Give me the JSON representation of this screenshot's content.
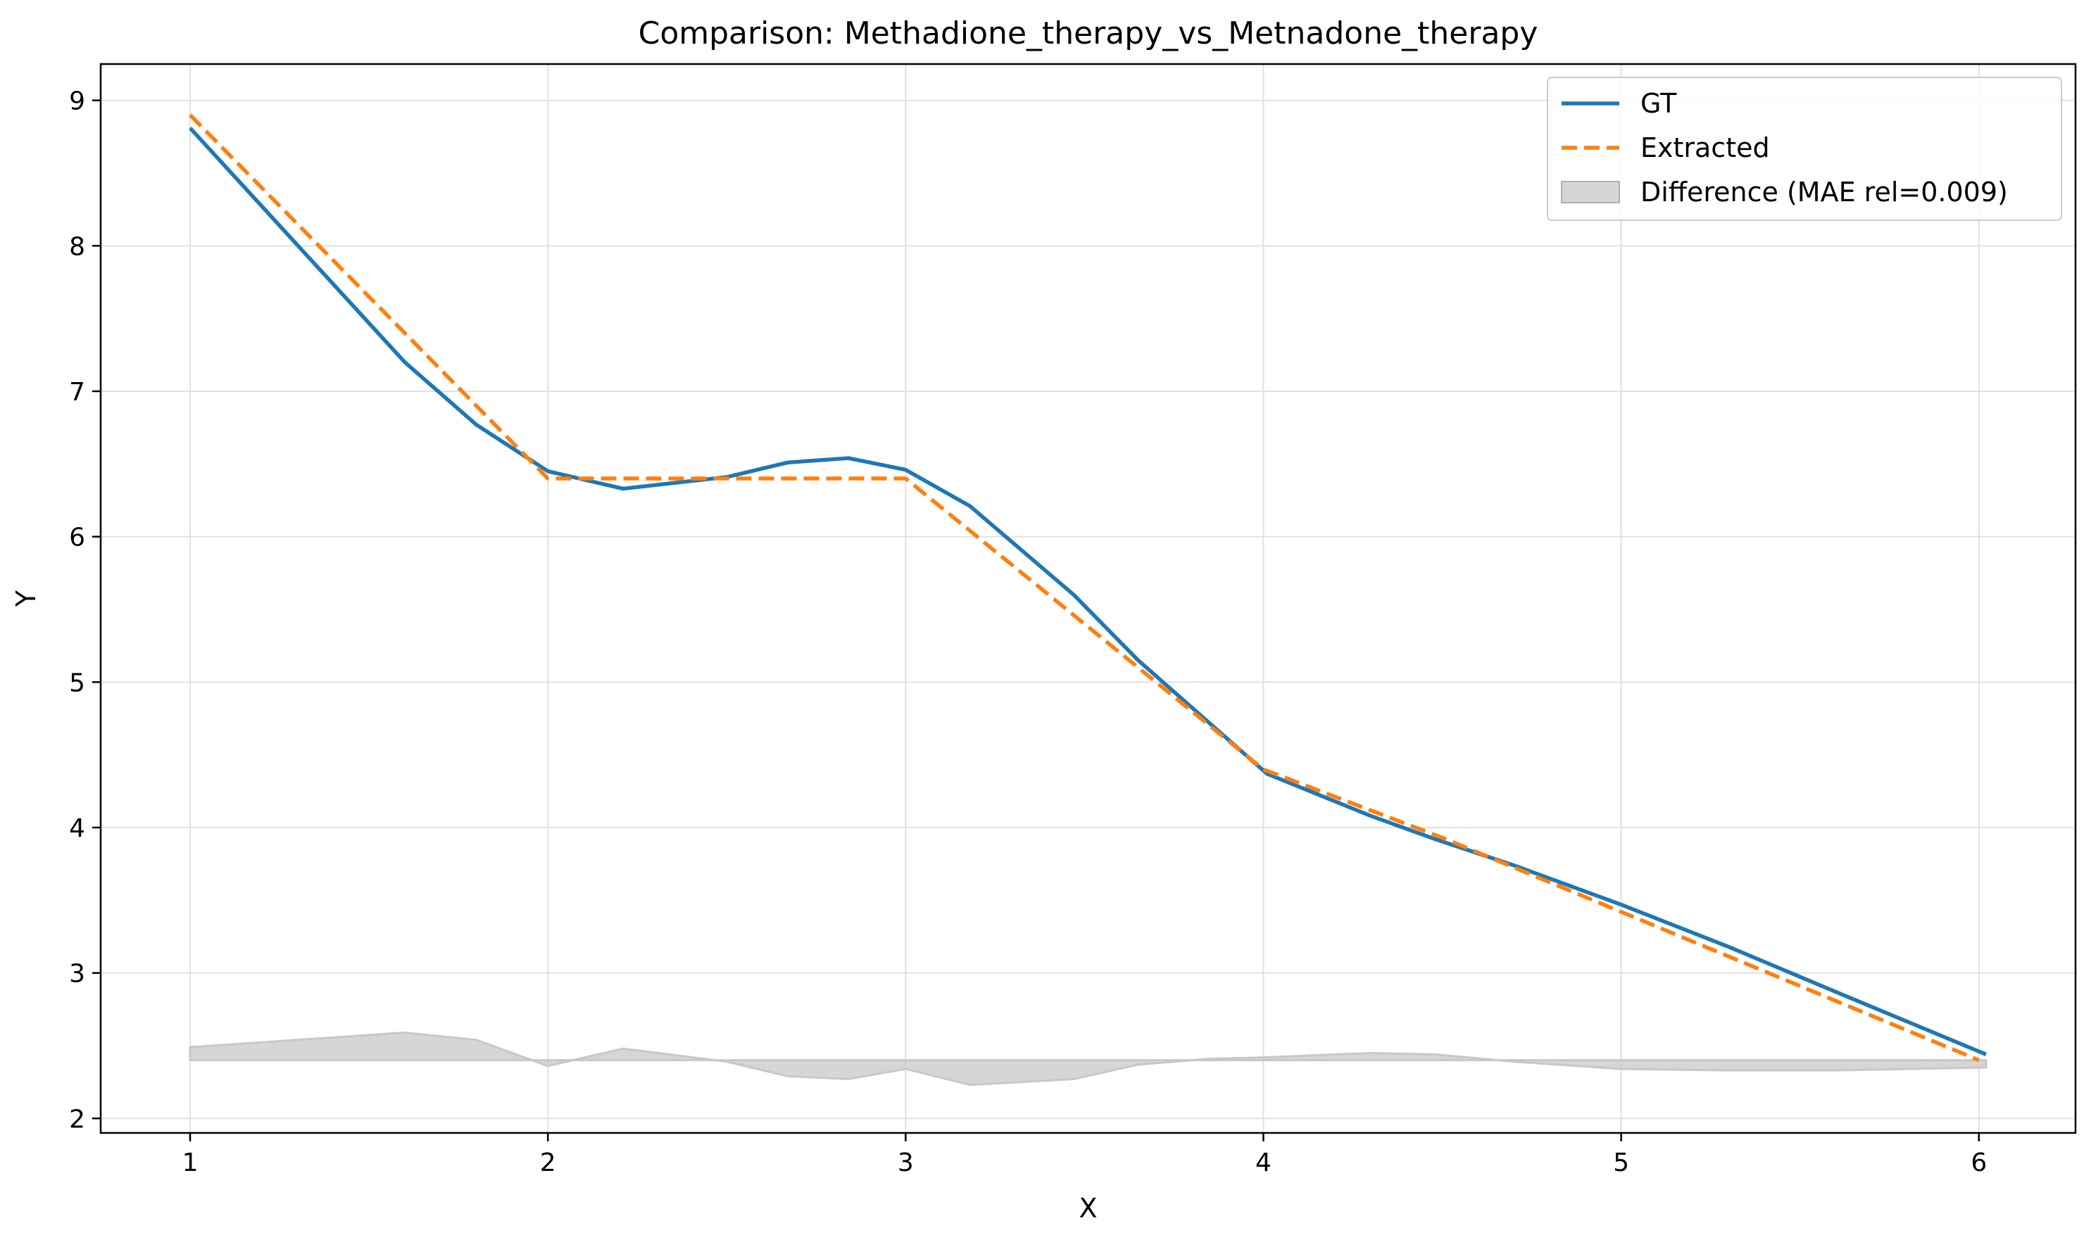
{
  "chart_data": {
    "type": "line",
    "title": "Comparison: Methadione_therapy_vs_Metnadone_therapy",
    "xlabel": "X",
    "ylabel": "Y",
    "xlim": [
      0.75,
      6.27
    ],
    "ylim": [
      1.9,
      9.25
    ],
    "x_ticks": [
      1,
      2,
      3,
      4,
      5,
      6
    ],
    "y_ticks": [
      2,
      3,
      4,
      5,
      6,
      7,
      8,
      9
    ],
    "grid": true,
    "legend_position": "upper right",
    "colors": {
      "gt": "#1f77b4",
      "extracted": "#ff7f0e",
      "difference": "#c8c8c8",
      "grid": "#e0e0e0"
    },
    "series": [
      {
        "name": "GT",
        "style": "solid",
        "x": [
          1.0,
          1.6,
          1.8,
          2.0,
          2.21,
          2.5,
          2.67,
          2.84,
          3.0,
          3.18,
          3.47,
          3.65,
          4.01,
          4.3,
          4.48,
          4.7,
          5.0,
          5.3,
          5.6,
          6.02
        ],
        "y": [
          8.81,
          7.2,
          6.77,
          6.45,
          6.33,
          6.41,
          6.51,
          6.54,
          6.46,
          6.21,
          5.6,
          5.15,
          4.37,
          4.08,
          3.92,
          3.74,
          3.47,
          3.18,
          2.87,
          2.44
        ]
      },
      {
        "name": "Extracted",
        "style": "dashed",
        "x": [
          1.0,
          2.0,
          3.0,
          4.0,
          4.5,
          5.0,
          6.0
        ],
        "y": [
          8.9,
          6.4,
          6.4,
          4.4,
          3.93,
          3.42,
          2.4
        ]
      },
      {
        "name": "Difference (MAE rel=0.009)",
        "style": "area",
        "baseline": 2.4,
        "x": [
          1.0,
          1.6,
          1.8,
          2.0,
          2.21,
          2.5,
          2.67,
          2.84,
          3.0,
          3.18,
          3.47,
          3.65,
          3.85,
          4.01,
          4.3,
          4.48,
          4.7,
          5.0,
          5.3,
          5.6,
          6.02
        ],
        "y": [
          2.49,
          2.59,
          2.54,
          2.36,
          2.48,
          2.39,
          2.29,
          2.27,
          2.34,
          2.23,
          2.27,
          2.37,
          2.41,
          2.42,
          2.45,
          2.44,
          2.39,
          2.34,
          2.33,
          2.33,
          2.35
        ]
      }
    ]
  }
}
